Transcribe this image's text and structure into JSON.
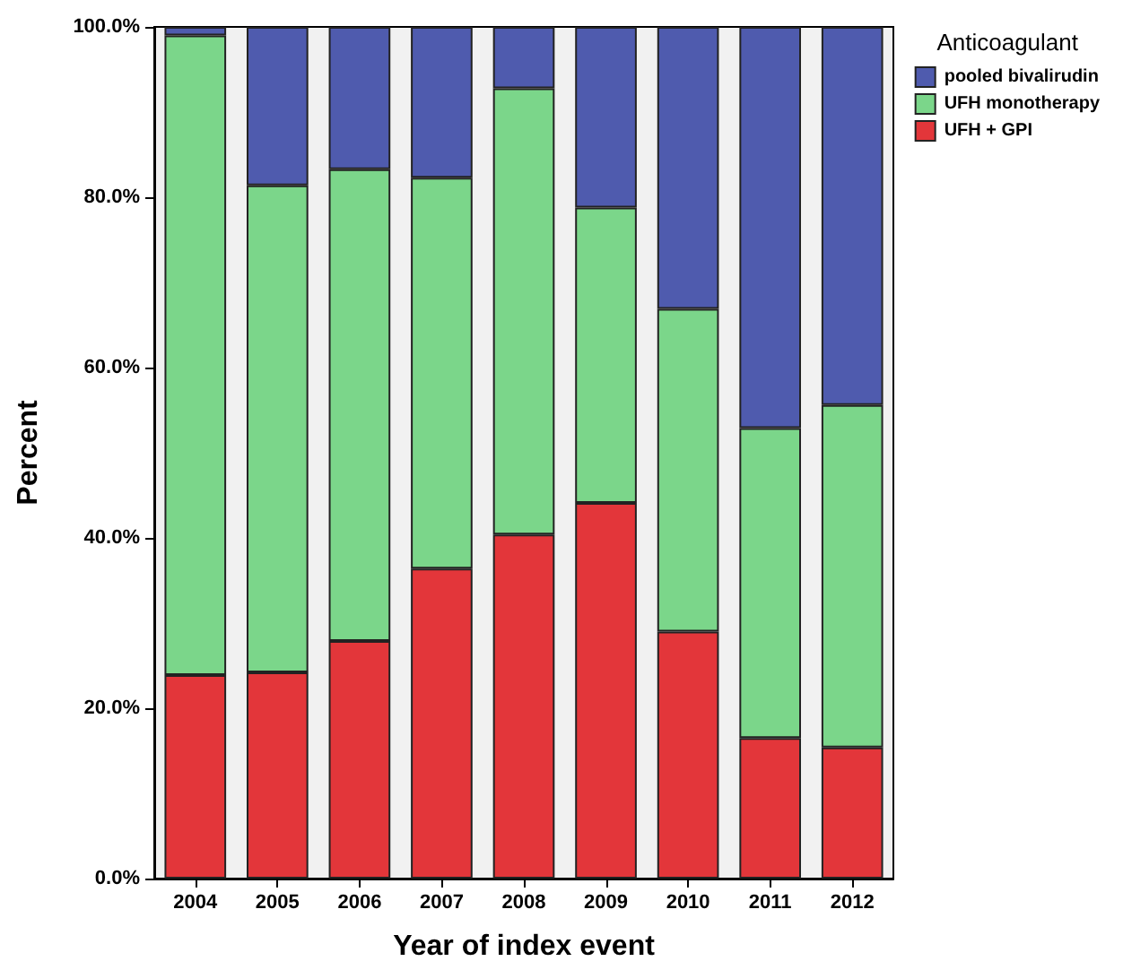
{
  "chart_data": {
    "type": "bar",
    "stacked": true,
    "xlabel": "Year of index event",
    "ylabel": "Percent",
    "legend_title": "Anticoagulant",
    "legend": "top right",
    "grid": false,
    "categories": [
      "2004",
      "2005",
      "2006",
      "2007",
      "2008",
      "2009",
      "2010",
      "2011",
      "2012"
    ],
    "ylim": [
      0,
      100
    ],
    "yticks": [
      {
        "value": 0,
        "label": "0.0%"
      },
      {
        "value": 20,
        "label": "20.0%"
      },
      {
        "value": 40,
        "label": "40.0%"
      },
      {
        "value": 60,
        "label": "60.0%"
      },
      {
        "value": 80,
        "label": "80.0%"
      },
      {
        "value": 100,
        "label": "100.0%"
      }
    ],
    "series": [
      {
        "name": "UFH + GPI",
        "color": "#e3363a",
        "values": [
          23.9,
          24.2,
          27.9,
          36.4,
          40.4,
          44.1,
          29.0,
          16.5,
          15.4
        ]
      },
      {
        "name": "UFH monotherapy",
        "color": "#7bd68a",
        "values": [
          75.1,
          57.2,
          55.4,
          45.9,
          52.4,
          34.7,
          37.9,
          36.4,
          40.2
        ]
      },
      {
        "name": "pooled bivalirudin",
        "color": "#4f5bae",
        "values": [
          1.0,
          18.6,
          16.7,
          17.7,
          7.2,
          21.2,
          33.1,
          47.1,
          44.4
        ]
      }
    ]
  }
}
